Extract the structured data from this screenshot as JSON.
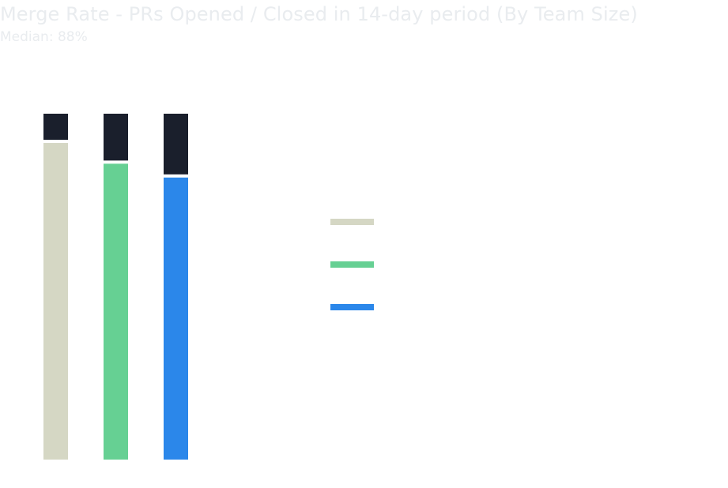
{
  "chart": {
    "title": "Merge Rate - PRs Opened / Closed in 14-day period (By Team Size)",
    "subtitle": "Median: 88%"
  },
  "colors": {
    "closed": "#1a1f2c",
    "series": [
      "#d5d7c4",
      "#66d093",
      "#2b87ea"
    ]
  },
  "chart_data": {
    "type": "bar",
    "stacked": true,
    "categories": [
      "",
      "",
      ""
    ],
    "series": [
      {
        "values": [
          92,
          86,
          82
        ]
      },
      {
        "values": [
          8,
          14,
          18
        ]
      }
    ],
    "ylim": [
      0,
      100
    ],
    "grid": false,
    "legend_position": "right"
  },
  "legend": {
    "items": [
      {
        "label": "",
        "color": "#d5d7c4"
      },
      {
        "label": "",
        "color": "#66d093"
      },
      {
        "label": "",
        "color": "#2b87ea"
      }
    ]
  }
}
